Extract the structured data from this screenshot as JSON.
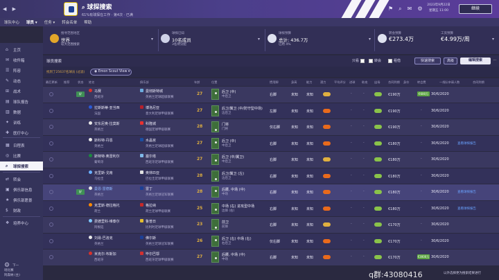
{
  "topbar": {
    "title": "球探搜索",
    "subtitle": "61%有球探在工作 · 第4次 · 已满",
    "date_line1": "2023年9月22日",
    "date_line2": "星期五 11:00",
    "continue_label": "继续",
    "icons": [
      "flag-icon",
      "search-icon",
      "mail-icon",
      "settings-icon"
    ]
  },
  "menubar": {
    "items": [
      "球队中心",
      "球员 ▾",
      "任务 ▾",
      "转会名单",
      "帮助"
    ]
  },
  "sidebar": {
    "items": [
      {
        "label": "主页",
        "icon": "⌂"
      },
      {
        "label": "收件箱",
        "icon": "✉"
      },
      {
        "label": "阵容",
        "icon": "☰"
      },
      {
        "label": "动态",
        "icon": "✎"
      },
      {
        "label": "战术",
        "icon": "⊞"
      },
      {
        "label": "球队报告",
        "icon": "▤"
      },
      {
        "label": "数据",
        "icon": "▥"
      },
      {
        "label": "训练",
        "icon": "✦"
      },
      {
        "label": "医疗中心",
        "icon": "✚"
      },
      {
        "label": "日程表",
        "icon": "▦"
      },
      {
        "label": "比赛",
        "icon": "◎"
      },
      {
        "label": "球探搜索",
        "icon": "⌕"
      },
      {
        "label": "转会",
        "icon": "⇄"
      },
      {
        "label": "俱乐部信息",
        "icon": "▣"
      },
      {
        "label": "俱乐部愿景",
        "icon": "★"
      },
      {
        "label": "财政",
        "icon": "$"
      },
      {
        "label": "培养中心",
        "icon": "❖"
      }
    ],
    "bottom_line1": "下一场比赛",
    "bottom_line2": "阿森纳 (主)"
  },
  "summary": [
    {
      "label": "搜寻范围地区",
      "value": "世界",
      "sub": "较大范围搜索"
    },
    {
      "label": "球探已知",
      "value": "10名成员",
      "sub": "3名待分配"
    },
    {
      "label": "球探预算",
      "value": "总计: 436.7万",
      "sub": "已用 4%"
    },
    {
      "label": "转会预算",
      "value": "€273.4万",
      "sub": ""
    },
    {
      "label": "工资预算",
      "value": "€4.99万/周",
      "sub": ""
    }
  ],
  "toolbar": {
    "title": "球员搜索",
    "check1": "只看",
    "check2": "转会",
    "check3": "租借",
    "btn_quick": "快速搜索",
    "btn_filter": "高级",
    "btn_edit": "编辑搜索",
    "more": "⋯"
  },
  "subbar": {
    "info": "找到了25637名球员 (过滤)",
    "view": "Emon Scout View"
  },
  "table": {
    "headers": [
      "最后更新",
      "推荐",
      "状态",
      "姓名",
      "俱乐部",
      "年龄",
      "位置",
      "惯用脚",
      "身高",
      "能力",
      "潜力",
      "平均评分",
      "进球",
      "助攻",
      "出场",
      "合同到期",
      "身价",
      "转会费",
      "一线队申请人数",
      "合同到期"
    ],
    "rows": [
      {
        "name": "马赛",
        "nation": "西班牙",
        "club": "曼彻斯特城",
        "club_sub": "英格兰足球超级联赛",
        "age": "27",
        "pos1": "后卫 (中)",
        "pos2": "中后卫",
        "foot": "右脚",
        "cond": "未知",
        "price": "€190万",
        "fee": "€600万",
        "date": "30/6/2020",
        "tag": "好",
        "hl": false,
        "link": ""
      },
      {
        "name": "拉斯斯蒂·亚当西",
        "nation": "法国",
        "club": "博洛尼亚",
        "club_sub": "意大利足球甲级联赛",
        "age": "27",
        "pos1": "后卫/翼卫 (中/防守型中场)",
        "pos2": "边后卫",
        "foot": "左脚",
        "cond": "未知",
        "price": "€190万",
        "fee": "",
        "date": "30/6/2020",
        "tag": "",
        "hl": false,
        "link": ""
      },
      {
        "name": "安东尼奥·拉莫斯",
        "nation": "英格兰",
        "club": "科隆城",
        "club_sub": "德国足球甲级联赛",
        "age": "28",
        "pos1": "门将",
        "pos2": "门将",
        "foot": "仅右脚",
        "cond": "未知",
        "price": "€190万",
        "fee": "",
        "date": "30/6/2020",
        "tag": "",
        "hl": false,
        "link": ""
      },
      {
        "name": "斯科特·丹恩",
        "nation": "英格兰",
        "club": "水晶宫",
        "club_sub": "英格兰足球超级联赛",
        "age": "27",
        "pos1": "后卫 (中)",
        "pos2": "中后卫",
        "foot": "右脚",
        "cond": "未知",
        "price": "€180万",
        "fee": "",
        "date": "30/6/2020",
        "tag": "",
        "hl": false,
        "link": "查看球探报告"
      },
      {
        "name": "斯特特·奥雷利尔",
        "nation": "葡萄牙",
        "club": "塞尔塔",
        "club_sub": "西班牙足球甲级联赛",
        "age": "27",
        "pos1": "后卫 (中/翼卫)",
        "pos2": "中后卫",
        "foot": "右脚",
        "cond": "未知",
        "price": "€180万",
        "fee": "",
        "date": "30/6/2020",
        "tag": "",
        "hl": false,
        "link": ""
      },
      {
        "name": "克里斯·戈南",
        "nation": "乌拉圭",
        "club": "奥林匹亚",
        "club_sub": "巴拉圭足球甲级联赛",
        "age": "28",
        "pos1": "后卫/翼卫 (左)",
        "pos2": "边后卫",
        "foot": "右脚",
        "cond": "未知",
        "price": "€180万",
        "fee": "",
        "date": "30/6/2020",
        "tag": "",
        "hl": false,
        "link": ""
      },
      {
        "name": "曼恩·雷德斯",
        "nation": "英格兰",
        "club": "雷丁",
        "club_sub": "英格兰足球冠军联赛",
        "age": "28",
        "pos1": "后腰, 中场 (中)",
        "pos2": "中场",
        "foot": "右脚",
        "cond": "未知",
        "price": "€180万",
        "fee": "",
        "date": "30/6/2020",
        "tag": "好",
        "hl": true,
        "link": "查看球探报告"
      },
      {
        "name": "克里斯·德拉格托",
        "nation": "荷兰",
        "club": "格拉纳",
        "club_sub": "荷兰足球甲级联赛",
        "age": "25",
        "pos1": "中场 (右) 进攻型中场",
        "pos2": "边锋 (右)",
        "foot": "右脚",
        "cond": "未知",
        "price": "€180万",
        "fee": "",
        "date": "30/6/2020",
        "tag": "",
        "hl": false,
        "link": "查看球探报告"
      },
      {
        "name": "费德里科·维泰尔",
        "nation": "阿根廷",
        "club": "鲁普日",
        "club_sub": "比利时足球甲级联赛",
        "age": "23",
        "pos1": "前卫",
        "pos2": "前锋",
        "foot": "右脚",
        "cond": "未知",
        "price": "€170万",
        "fee": "",
        "date": "30/6/2020",
        "tag": "",
        "hl": false,
        "link": ""
      },
      {
        "name": "刘易·巴洛克",
        "nation": "英格兰",
        "club": "佛尔斯",
        "club_sub": "英格兰足球冠军联赛",
        "age": "26",
        "pos1": "后卫 (右) 中场 (右)",
        "pos2": "右后卫",
        "foot": "仅右脚",
        "cond": "未知",
        "price": "€170万",
        "fee": "",
        "date": "30/6/2020",
        "tag": "",
        "hl": false,
        "link": ""
      },
      {
        "name": "米克尔·布斯加",
        "nation": "西班牙",
        "club": "毕尔巴鄂",
        "club_sub": "西班牙足球甲级联赛",
        "age": "27",
        "pos1": "后腰, 中场 (中)",
        "pos2": "中场",
        "foot": "右脚",
        "cond": "未知",
        "price": "€170万",
        "fee": "€3000万",
        "date": "30/6/2020",
        "tag": "",
        "hl": false,
        "link": ""
      }
    ]
  },
  "footer": {
    "watermark": "q群:43080416",
    "info": "以外选择更为搜索结果进行"
  },
  "colors": {
    "accent": "#5b3c9a",
    "orange": "#e96a1c",
    "green": "#5aa33f",
    "age": "#e0b040"
  }
}
